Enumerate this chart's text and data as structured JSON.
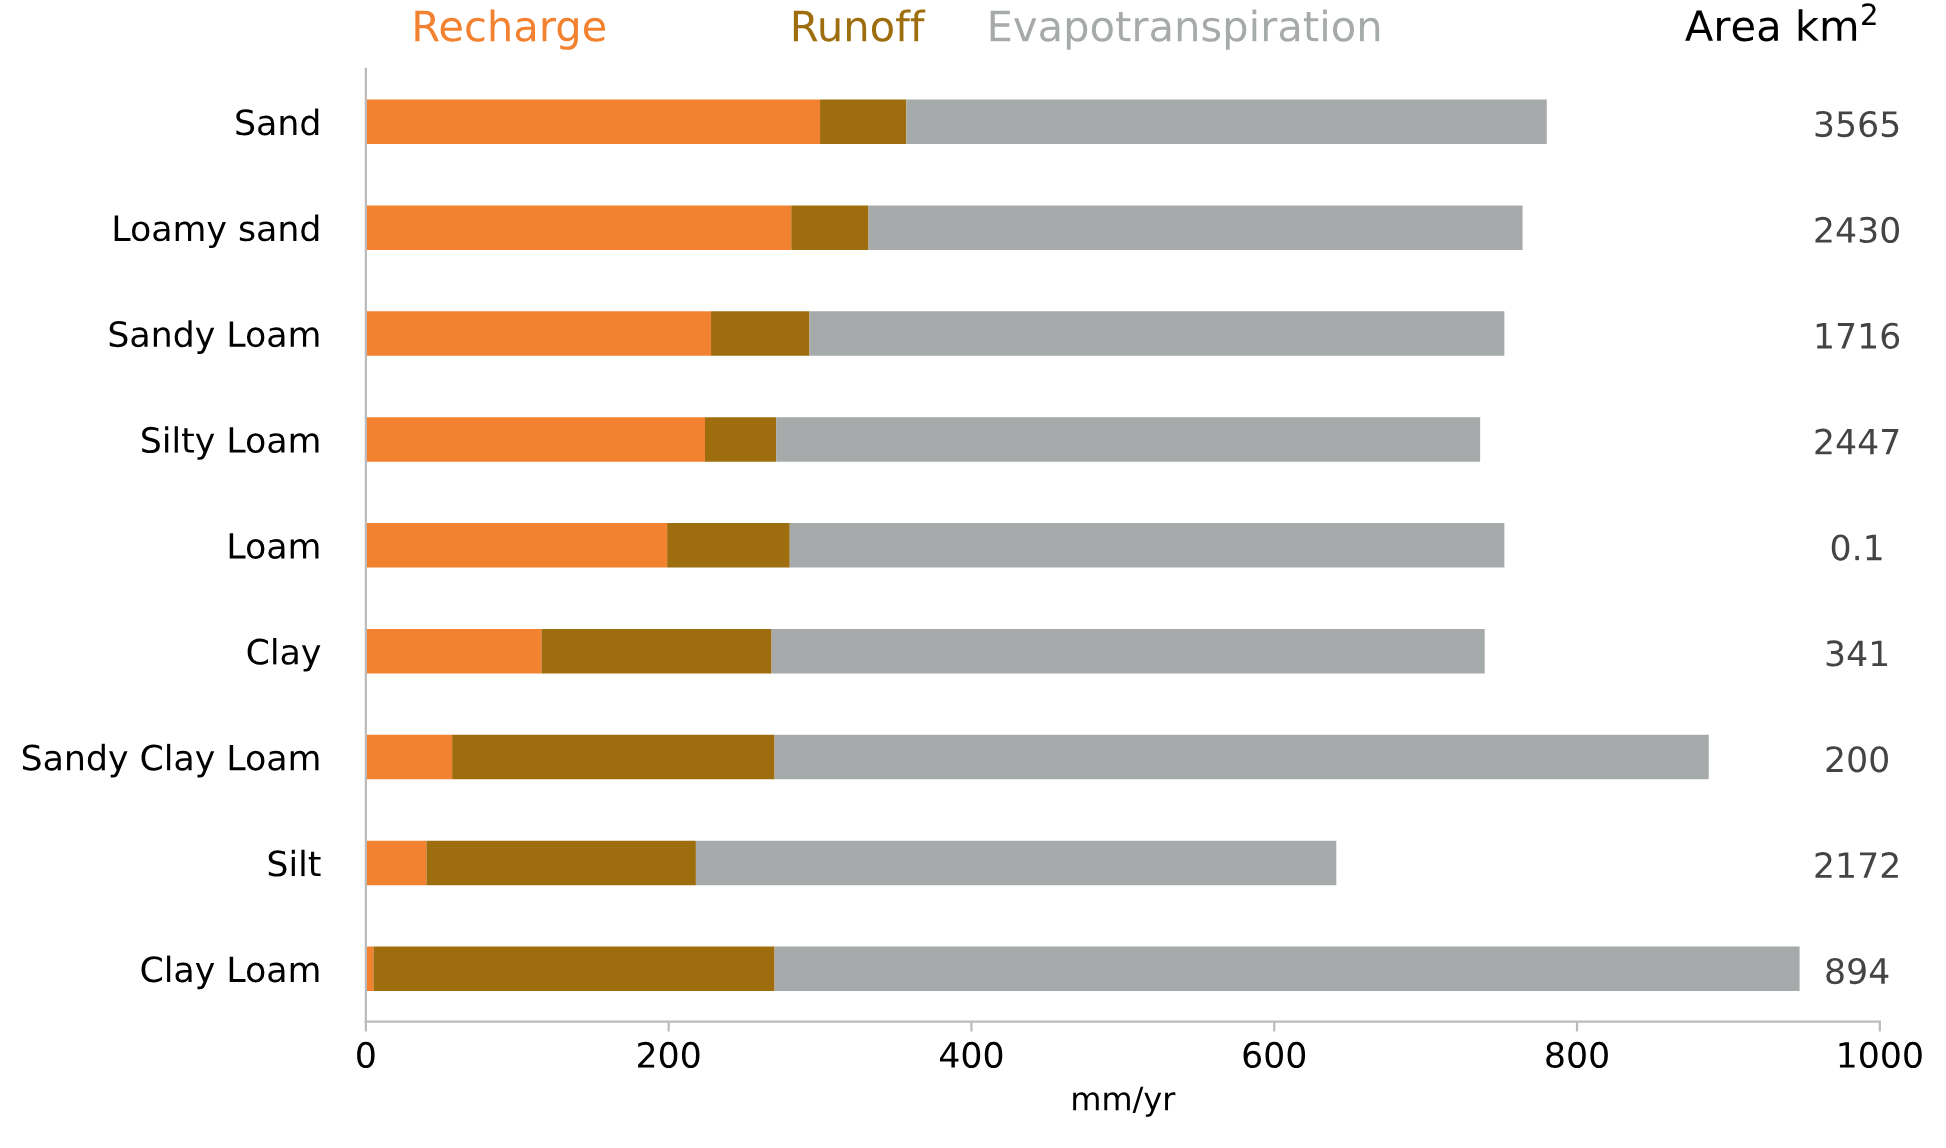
{
  "chart_data": {
    "type": "bar",
    "orientation": "horizontal",
    "stacked": true,
    "xlabel": "mm/yr",
    "categories": [
      "Sand",
      "Loamy sand",
      "Sandy Loam",
      "Silty Loam",
      "Loam",
      "Clay",
      "Sandy Clay Loam",
      "Silt",
      "Clay Loam"
    ],
    "series": [
      {
        "name": "Recharge",
        "color": "#f28230",
        "values": [
          300,
          281,
          228,
          224,
          199,
          116,
          57,
          40,
          5
        ]
      },
      {
        "name": "Runoff",
        "color": "#9e6d0e",
        "values": [
          57,
          51,
          65,
          47,
          81,
          152,
          213,
          178,
          265
        ]
      },
      {
        "name": "Evapotranspiration",
        "color": "#a7aaaa",
        "values": [
          423,
          432,
          459,
          465,
          472,
          471,
          617,
          423,
          677
        ]
      }
    ],
    "xlim": [
      0,
      1000
    ],
    "xticks": [
      0,
      200,
      400,
      600,
      800,
      1000
    ],
    "grid": false,
    "legend": "top",
    "annotations": [
      "Area km$^{2}$",
      "3565",
      "2430",
      "1716",
      "2447",
      "0.1",
      "341",
      "200",
      "2172",
      "894"
    ]
  }
}
